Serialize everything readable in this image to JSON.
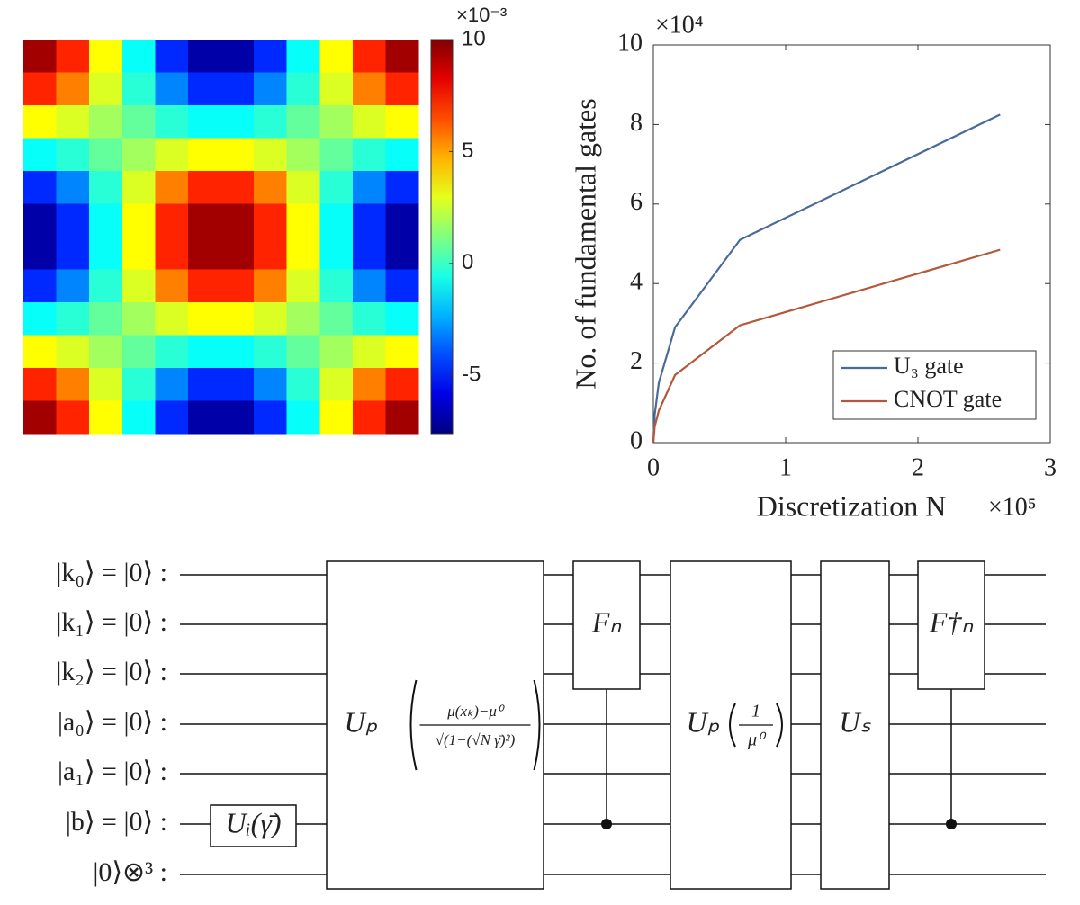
{
  "chart_data": [
    {
      "type": "heatmap",
      "colorbar_exponent": "×10⁻³",
      "zlim": [
        -7.6,
        10
      ],
      "colorbar_ticks": [
        -5,
        0,
        5,
        10
      ],
      "colormap": "jet",
      "values": [
        [
          9.4,
          7.2,
          3.4,
          -0.9,
          -4.7,
          -6.9,
          -6.9,
          -4.7,
          -0.9,
          3.4,
          7.2,
          9.4
        ],
        [
          7.2,
          5.6,
          2.8,
          -0.3,
          -3.1,
          -4.7,
          -4.7,
          -3.1,
          -0.3,
          2.8,
          5.6,
          7.2
        ],
        [
          3.4,
          2.8,
          1.8,
          0.7,
          -0.3,
          -0.9,
          -0.9,
          -0.3,
          0.7,
          1.8,
          2.8,
          3.4
        ],
        [
          -0.9,
          -0.3,
          0.7,
          1.8,
          2.8,
          3.4,
          3.4,
          2.8,
          1.8,
          0.7,
          -0.3,
          -0.9
        ],
        [
          -4.7,
          -3.1,
          -0.3,
          2.8,
          5.6,
          7.2,
          7.2,
          5.6,
          2.8,
          -0.3,
          -3.1,
          -4.7
        ],
        [
          -6.9,
          -4.7,
          -0.9,
          3.4,
          7.2,
          9.4,
          9.4,
          7.2,
          3.4,
          -0.9,
          -4.7,
          -6.9
        ],
        [
          -6.9,
          -4.7,
          -0.9,
          3.4,
          7.2,
          9.4,
          9.4,
          7.2,
          3.4,
          -0.9,
          -4.7,
          -6.9
        ],
        [
          -4.7,
          -3.1,
          -0.3,
          2.8,
          5.6,
          7.2,
          7.2,
          5.6,
          2.8,
          -0.3,
          -3.1,
          -4.7
        ],
        [
          -0.9,
          -0.3,
          0.7,
          1.8,
          2.8,
          3.4,
          3.4,
          2.8,
          1.8,
          0.7,
          -0.3,
          -0.9
        ],
        [
          3.4,
          2.8,
          1.8,
          0.7,
          -0.3,
          -0.9,
          -0.9,
          -0.3,
          0.7,
          1.8,
          2.8,
          3.4
        ],
        [
          7.2,
          5.6,
          2.8,
          -0.3,
          -3.1,
          -4.7,
          -4.7,
          -3.1,
          -0.3,
          2.8,
          5.6,
          7.2
        ],
        [
          9.4,
          7.2,
          3.4,
          -0.9,
          -4.7,
          -6.9,
          -6.9,
          -4.7,
          -0.9,
          3.4,
          7.2,
          9.4
        ]
      ]
    },
    {
      "type": "line",
      "x_label": "Discretization N",
      "y_label": "No. of fundamental gates",
      "x_exponent": "×10⁵",
      "y_exponent": "×10⁴",
      "x": [
        0.0025,
        0.01,
        0.041,
        0.164,
        0.655,
        2.621
      ],
      "series": [
        {
          "name": "U₃ gate",
          "color": "#4a6a9a",
          "values": [
            0.2,
            0.7,
            1.5,
            2.9,
            5.1,
            8.25
          ]
        },
        {
          "name": "CNOT gate",
          "color": "#b5573a",
          "values": [
            0.1,
            0.4,
            0.8,
            1.7,
            2.95,
            4.85
          ]
        }
      ],
      "xlim": [
        0,
        3
      ],
      "xticks": [
        0,
        1,
        2,
        3
      ],
      "ylim": [
        0,
        10
      ],
      "yticks": [
        0,
        2,
        4,
        6,
        8,
        10
      ],
      "legend": "lower right"
    }
  ],
  "circuit": {
    "wires": [
      "|k₀⟩ = |0⟩ :",
      "|k₁⟩ = |0⟩ :",
      "|k₂⟩ = |0⟩ :",
      "|a₀⟩ = |0⟩ :",
      "|a₁⟩ = |0⟩ :",
      "|b⟩ = |0⟩ :",
      "|0⟩⊗³ :"
    ],
    "gates": [
      {
        "label": "Uᵢ(γ̄)"
      },
      {
        "name": "Uₚ",
        "numerator": "μ(xₖ)−μ⁰",
        "denominator": "√(1−(√N γ̄)²)"
      },
      {
        "label": "Fₙ"
      },
      {
        "name": "Uₚ",
        "numerator": "1",
        "denominator": "μ⁰"
      },
      {
        "label": "Uₛ"
      },
      {
        "label": "F†ₙ"
      }
    ]
  }
}
